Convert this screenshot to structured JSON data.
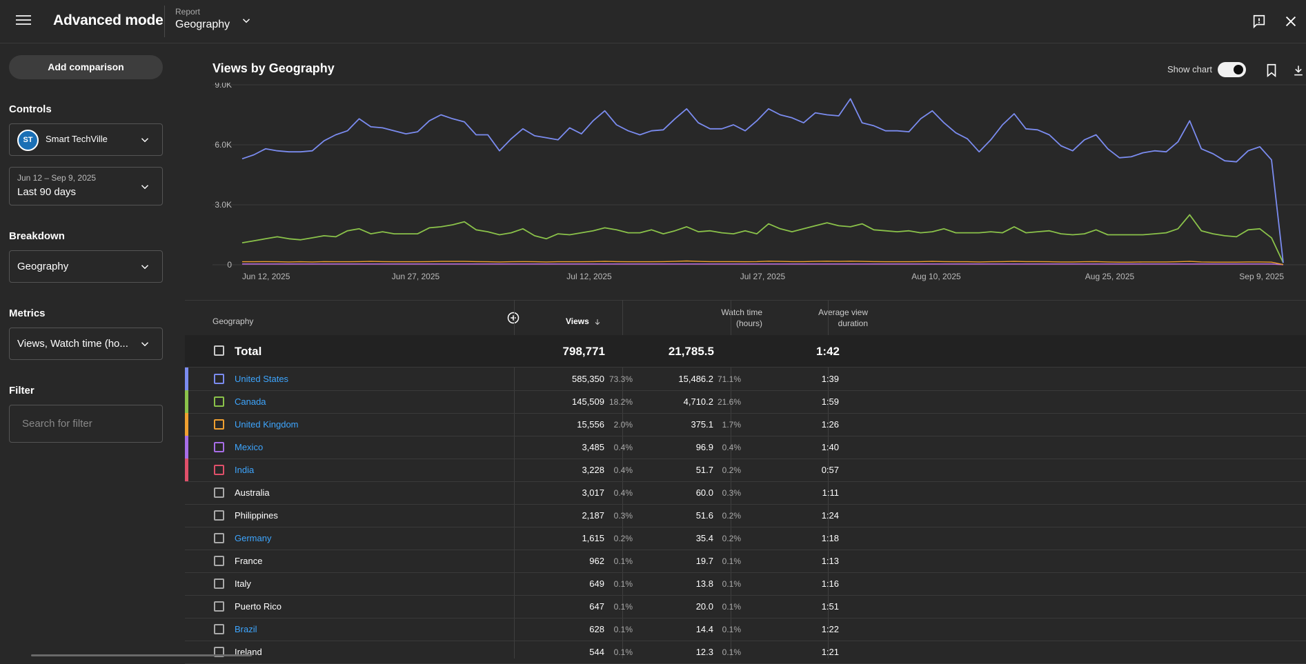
{
  "header": {
    "title": "Advanced mode",
    "report_caption": "Report",
    "report_value": "Geography"
  },
  "sidebar": {
    "add_comparison": "Add comparison",
    "controls_label": "Controls",
    "channel_name": "Smart TechVille",
    "channel_logo_text": "ST",
    "date_range_caption": "Jun 12 – Sep 9, 2025",
    "date_range_value": "Last 90 days",
    "breakdown_label": "Breakdown",
    "breakdown_value": "Geography",
    "metrics_label": "Metrics",
    "metrics_value": "Views, Watch time (ho...",
    "filter_label": "Filter",
    "filter_placeholder": "Search for filter"
  },
  "main": {
    "chart_title": "Views by Geography",
    "show_chart_label": "Show chart",
    "show_chart_on": true
  },
  "chart_data": {
    "type": "line",
    "title": "Views by Geography",
    "y_ticks": [
      "0",
      "3.0K",
      "6.0K",
      "9.0K"
    ],
    "ylim": [
      0,
      9000
    ],
    "x_ticks": [
      "Jun 12, 2025",
      "Jun 27, 2025",
      "Jul 12, 2025",
      "Jul 27, 2025",
      "Aug 10, 2025",
      "Aug 25, 2025",
      "Sep 9, 2025"
    ],
    "grid": true,
    "series": [
      {
        "color": "#7b8cf0",
        "values": [
          5300,
          5500,
          5800,
          5700,
          5650,
          5650,
          5700,
          6200,
          6500,
          6700,
          7300,
          6900,
          6850,
          6700,
          6550,
          6650,
          7200,
          7500,
          7300,
          7150,
          6500,
          6500,
          5700,
          6300,
          6800,
          6450,
          6350,
          6250,
          6850,
          6550,
          7200,
          7700,
          7000,
          6700,
          6500,
          6700,
          6750,
          7300,
          7800,
          7100,
          6800,
          6800,
          7000,
          6700,
          7200,
          7800,
          7500,
          7350,
          7100,
          7600,
          7500,
          7450,
          8300,
          7100,
          6950,
          6700,
          6700,
          6650,
          7300,
          7700,
          7100,
          6600,
          6300,
          5650,
          6250,
          7000,
          7550,
          6800,
          6750,
          6500,
          5950,
          5700,
          6250,
          6500,
          5800,
          5350,
          5400,
          5600,
          5700,
          5650,
          6150,
          7200,
          5800,
          5550,
          5200,
          5150,
          5700,
          5900,
          5250,
          100
        ]
      },
      {
        "color": "#8bc34a",
        "values": [
          1100,
          1200,
          1300,
          1400,
          1300,
          1250,
          1350,
          1450,
          1400,
          1700,
          1800,
          1550,
          1650,
          1550,
          1550,
          1550,
          1850,
          1900,
          2000,
          2150,
          1750,
          1650,
          1500,
          1600,
          1800,
          1450,
          1300,
          1550,
          1500,
          1600,
          1700,
          1850,
          1750,
          1600,
          1600,
          1750,
          1550,
          1700,
          1900,
          1650,
          1700,
          1600,
          1550,
          1700,
          1550,
          2050,
          1800,
          1650,
          1800,
          1950,
          2100,
          1950,
          1900,
          2050,
          1750,
          1700,
          1650,
          1700,
          1600,
          1650,
          1800,
          1600,
          1600,
          1600,
          1650,
          1600,
          1900,
          1600,
          1650,
          1700,
          1550,
          1500,
          1550,
          1750,
          1500,
          1500,
          1500,
          1500,
          1550,
          1600,
          1800,
          2500,
          1700,
          1550,
          1450,
          1400,
          1750,
          1800,
          1350,
          100
        ]
      },
      {
        "color": "#f0a030",
        "values": [
          150,
          150,
          160,
          150,
          140,
          150,
          140,
          160,
          150,
          150,
          160,
          170,
          160,
          150,
          150,
          150,
          160,
          170,
          170,
          170,
          160,
          150,
          140,
          150,
          160,
          150,
          140,
          150,
          150,
          150,
          160,
          170,
          160,
          150,
          150,
          150,
          160,
          170,
          190,
          170,
          160,
          160,
          160,
          150,
          160,
          180,
          170,
          160,
          160,
          170,
          180,
          170,
          180,
          170,
          160,
          150,
          150,
          150,
          160,
          170,
          160,
          150,
          150,
          140,
          150,
          160,
          170,
          160,
          160,
          150,
          140,
          140,
          150,
          160,
          140,
          130,
          130,
          140,
          140,
          140,
          150,
          170,
          140,
          130,
          130,
          130,
          140,
          140,
          130,
          10
        ]
      },
      {
        "color": "#a86ee8",
        "values": [
          40,
          40,
          40,
          40,
          40,
          40,
          40,
          40,
          40,
          40,
          40,
          40,
          40,
          40,
          40,
          40,
          40,
          40,
          40,
          40,
          40,
          40,
          40,
          40,
          40,
          40,
          40,
          40,
          40,
          40,
          40,
          40,
          40,
          40,
          40,
          40,
          40,
          40,
          40,
          40,
          40,
          40,
          40,
          40,
          40,
          40,
          40,
          40,
          40,
          40,
          40,
          40,
          40,
          40,
          40,
          40,
          40,
          40,
          40,
          40,
          40,
          40,
          40,
          40,
          40,
          40,
          40,
          40,
          40,
          40,
          40,
          40,
          40,
          40,
          40,
          40,
          40,
          40,
          40,
          40,
          40,
          40,
          40,
          40,
          40,
          40,
          40,
          40,
          40,
          5
        ]
      },
      {
        "color": "#e0506a",
        "values": [
          35,
          35,
          35,
          35,
          35,
          35,
          35,
          35,
          35,
          35,
          35,
          35,
          35,
          35,
          35,
          35,
          35,
          35,
          35,
          35,
          35,
          35,
          35,
          35,
          35,
          35,
          35,
          35,
          35,
          35,
          35,
          35,
          35,
          35,
          35,
          35,
          35,
          35,
          35,
          35,
          35,
          35,
          35,
          35,
          35,
          35,
          35,
          35,
          35,
          35,
          35,
          35,
          35,
          35,
          35,
          35,
          35,
          35,
          35,
          35,
          35,
          35,
          35,
          35,
          35,
          35,
          35,
          35,
          35,
          35,
          35,
          35,
          35,
          35,
          35,
          35,
          35,
          35,
          35,
          35,
          35,
          35,
          35,
          35,
          35,
          35,
          35,
          35,
          35,
          5
        ]
      }
    ]
  },
  "table": {
    "headers": {
      "geography": "Geography",
      "views": "Views",
      "watch_time_1": "Watch time",
      "watch_time_2": "(hours)",
      "avd_1": "Average view",
      "avd_2": "duration"
    },
    "total": {
      "label": "Total",
      "views": "798,771",
      "watch_time": "21,785.5",
      "avd": "1:42"
    },
    "rows": [
      {
        "geo": "United States",
        "link": true,
        "color": "#7b8cf0",
        "views": "585,350",
        "views_pct": "73.3%",
        "watch": "15,486.2",
        "watch_pct": "71.1%",
        "avd": "1:39"
      },
      {
        "geo": "Canada",
        "link": true,
        "color": "#8bc34a",
        "views": "145,509",
        "views_pct": "18.2%",
        "watch": "4,710.2",
        "watch_pct": "21.6%",
        "avd": "1:59"
      },
      {
        "geo": "United Kingdom",
        "link": true,
        "color": "#f0a030",
        "views": "15,556",
        "views_pct": "2.0%",
        "watch": "375.1",
        "watch_pct": "1.7%",
        "avd": "1:26"
      },
      {
        "geo": "Mexico",
        "link": true,
        "color": "#a86ee8",
        "views": "3,485",
        "views_pct": "0.4%",
        "watch": "96.9",
        "watch_pct": "0.4%",
        "avd": "1:40"
      },
      {
        "geo": "India",
        "link": true,
        "color": "#e0506a",
        "views": "3,228",
        "views_pct": "0.4%",
        "watch": "51.7",
        "watch_pct": "0.2%",
        "avd": "0:57"
      },
      {
        "geo": "Australia",
        "link": false,
        "color": "",
        "views": "3,017",
        "views_pct": "0.4%",
        "watch": "60.0",
        "watch_pct": "0.3%",
        "avd": "1:11"
      },
      {
        "geo": "Philippines",
        "link": false,
        "color": "",
        "views": "2,187",
        "views_pct": "0.3%",
        "watch": "51.6",
        "watch_pct": "0.2%",
        "avd": "1:24"
      },
      {
        "geo": "Germany",
        "link": true,
        "color": "",
        "views": "1,615",
        "views_pct": "0.2%",
        "watch": "35.4",
        "watch_pct": "0.2%",
        "avd": "1:18"
      },
      {
        "geo": "France",
        "link": false,
        "color": "",
        "views": "962",
        "views_pct": "0.1%",
        "watch": "19.7",
        "watch_pct": "0.1%",
        "avd": "1:13"
      },
      {
        "geo": "Italy",
        "link": false,
        "color": "",
        "views": "649",
        "views_pct": "0.1%",
        "watch": "13.8",
        "watch_pct": "0.1%",
        "avd": "1:16"
      },
      {
        "geo": "Puerto Rico",
        "link": false,
        "color": "",
        "views": "647",
        "views_pct": "0.1%",
        "watch": "20.0",
        "watch_pct": "0.1%",
        "avd": "1:51"
      },
      {
        "geo": "Brazil",
        "link": true,
        "color": "",
        "views": "628",
        "views_pct": "0.1%",
        "watch": "14.4",
        "watch_pct": "0.1%",
        "avd": "1:22"
      },
      {
        "geo": "Ireland",
        "link": false,
        "color": "",
        "views": "544",
        "views_pct": "0.1%",
        "watch": "12.3",
        "watch_pct": "0.1%",
        "avd": "1:21"
      }
    ]
  },
  "icons": {
    "menu": "hamburger-menu-icon",
    "feedback": "feedback-icon",
    "close": "close-icon",
    "bookmark": "bookmark-icon",
    "download": "download-icon",
    "chevron": "chevron-down-icon",
    "add_metric": "add-circle-icon",
    "sort": "arrow-down-icon"
  }
}
